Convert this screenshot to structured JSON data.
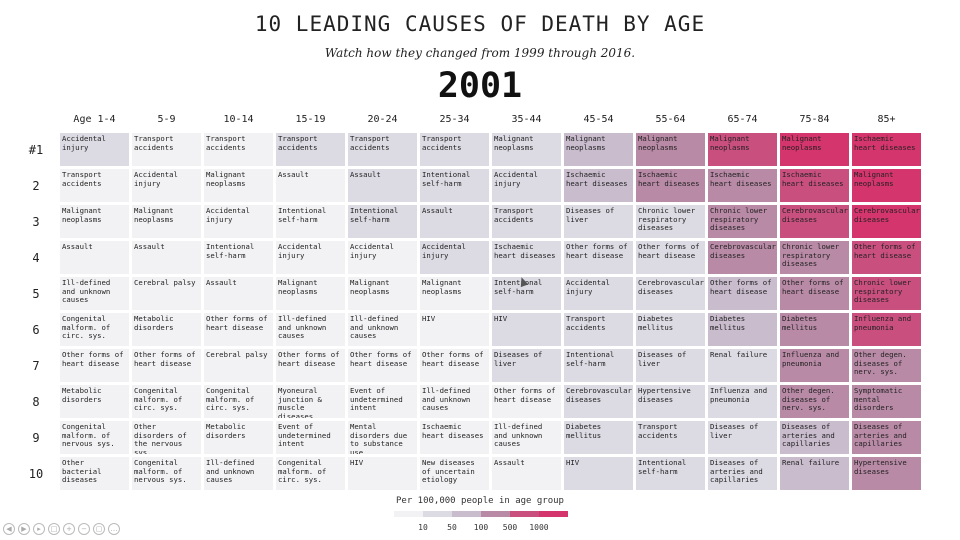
{
  "title": "10 LEADING CAUSES OF DEATH BY AGE",
  "subtitle": "Watch how they changed from 1999 through 2016.",
  "year": "2001",
  "legend": {
    "title": "Per 100,000 people in age group",
    "ticks": [
      "10",
      "50",
      "100",
      "500",
      "1000"
    ],
    "colors": [
      "#f2f2f4",
      "#dcdae3",
      "#c8bccd",
      "#b88aa6",
      "#c94f7f",
      "#d4356c"
    ]
  },
  "controls": [
    "rewind-icon",
    "play-icon",
    "next-icon",
    "copy-icon",
    "zoom-in-icon",
    "zoom-out-icon",
    "fullscreen-icon",
    "more-icon"
  ],
  "chart_data": {
    "type": "table",
    "age_groups": [
      "Age 1-4",
      "5-9",
      "10-14",
      "15-19",
      "20-24",
      "25-34",
      "35-44",
      "45-54",
      "55-64",
      "65-74",
      "75-84",
      "85+"
    ],
    "ranks": [
      "#1",
      "2",
      "3",
      "4",
      "5",
      "6",
      "7",
      "8",
      "9",
      "10"
    ],
    "rates_per_100k": [
      [
        10,
        6,
        9,
        25,
        40,
        27,
        42,
        87,
        220,
        530,
        1040,
        1400
      ],
      [
        6,
        2,
        2,
        9,
        13,
        13,
        30,
        95,
        180,
        450,
        980,
        1210
      ],
      [
        3,
        2,
        2,
        8,
        12,
        12,
        15,
        25,
        45,
        130,
        520,
        1090
      ],
      [
        2,
        1,
        1,
        2,
        7,
        10,
        16,
        22,
        44,
        100,
        220,
        760
      ],
      [
        2,
        0.5,
        1,
        2,
        5,
        9,
        12,
        20,
        40,
        75,
        200,
        570
      ],
      [
        1.5,
        0.5,
        1,
        2,
        4,
        7,
        12,
        15,
        36,
        60,
        150,
        520
      ],
      [
        1.2,
        0.5,
        0.5,
        1,
        2,
        3,
        10,
        14,
        21,
        40,
        120,
        330
      ],
      [
        1,
        0.4,
        0.5,
        1,
        1.5,
        2,
        8,
        12,
        15,
        34,
        100,
        320
      ],
      [
        0.8,
        0.4,
        0.5,
        1,
        1.2,
        2,
        8,
        11,
        14,
        30,
        95,
        290
      ],
      [
        0.8,
        0.3,
        0.4,
        0.8,
        1,
        2,
        6,
        10,
        12,
        28,
        80,
        210
      ]
    ],
    "causes": [
      [
        "Accidental injury",
        "Transport accidents",
        "Transport accidents",
        "Transport accidents",
        "Transport accidents",
        "Transport accidents",
        "Malignant neoplasms",
        "Malignant neoplasms",
        "Malignant neoplasms",
        "Malignant neoplasms",
        "Malignant neoplasms",
        "Ischaemic heart diseases"
      ],
      [
        "Transport accidents",
        "Accidental injury",
        "Malignant neoplasms",
        "Assault",
        "Assault",
        "Intentional self-harm",
        "Accidental injury",
        "Ischaemic heart diseases",
        "Ischaemic heart diseases",
        "Ischaemic heart diseases",
        "Ischaemic heart diseases",
        "Malignant neoplasms"
      ],
      [
        "Malignant neoplasms",
        "Malignant neoplasms",
        "Accidental injury",
        "Intentional self-harm",
        "Intentional self-harm",
        "Assault",
        "Transport accidents",
        "Diseases of liver",
        "Chronic lower respiratory diseases",
        "Chronic lower respiratory diseases",
        "Cerebrovascular diseases",
        "Cerebrovascular diseases"
      ],
      [
        "Assault",
        "Assault",
        "Intentional self-harm",
        "Accidental injury",
        "Accidental injury",
        "Accidental injury",
        "Ischaemic heart diseases",
        "Other forms of heart disease",
        "Other forms of heart disease",
        "Cerebrovascular diseases",
        "Chronic lower respiratory diseases",
        "Other forms of heart disease"
      ],
      [
        "Ill-defined and unknown causes",
        "Cerebral palsy",
        "Assault",
        "Malignant neoplasms",
        "Malignant neoplasms",
        "Malignant neoplasms",
        "Intentional self-harm",
        "Accidental injury",
        "Cerebrovascular diseases",
        "Other forms of heart disease",
        "Other forms of heart disease",
        "Chronic lower respiratory diseases"
      ],
      [
        "Congenital malform. of circ. sys.",
        "Metabolic disorders",
        "Other forms of heart disease",
        "Ill-defined and unknown causes",
        "Ill-defined and unknown causes",
        "HIV",
        "HIV",
        "Transport accidents",
        "Diabetes mellitus",
        "Diabetes mellitus",
        "Diabetes mellitus",
        "Influenza and pneumonia"
      ],
      [
        "Other forms of heart disease",
        "Other forms of heart disease",
        "Cerebral palsy",
        "Other forms of heart disease",
        "Other forms of heart disease",
        "Other forms of heart disease",
        "Diseases of liver",
        "Intentional self-harm",
        "Diseases of liver",
        "Renal failure",
        "Influenza and pneumonia",
        "Other degen. diseases of nerv. sys."
      ],
      [
        "Metabolic disorders",
        "Congenital malform. of circ. sys.",
        "Congenital malform. of circ. sys.",
        "Myoneural junction & muscle diseases",
        "Event of undetermined intent",
        "Ill-defined and unknown causes",
        "Other forms of heart disease",
        "Cerebrovascular diseases",
        "Hypertensive diseases",
        "Influenza and pneumonia",
        "Other degen. diseases of nerv. sys.",
        "Symptomatic mental disorders"
      ],
      [
        "Congenital malform. of nervous sys.",
        "Other disorders of the nervous sys.",
        "Metabolic disorders",
        "Event of undetermined intent",
        "Mental disorders due to substance use",
        "Ischaemic heart diseases",
        "Ill-defined and unknown causes",
        "Diabetes mellitus",
        "Transport accidents",
        "Diseases of liver",
        "Diseases of arteries and capillaries",
        "Diseases of arteries and capillaries"
      ],
      [
        "Other bacterial diseases",
        "Congenital malform. of nervous sys.",
        "Ill-defined and unknown causes",
        "Congenital malform. of circ. sys.",
        "HIV",
        "New diseases of uncertain etiology",
        "Assault",
        "HIV",
        "Intentional self-harm",
        "Diseases of arteries and capillaries",
        "Renal failure",
        "Hypertensive diseases"
      ]
    ]
  }
}
